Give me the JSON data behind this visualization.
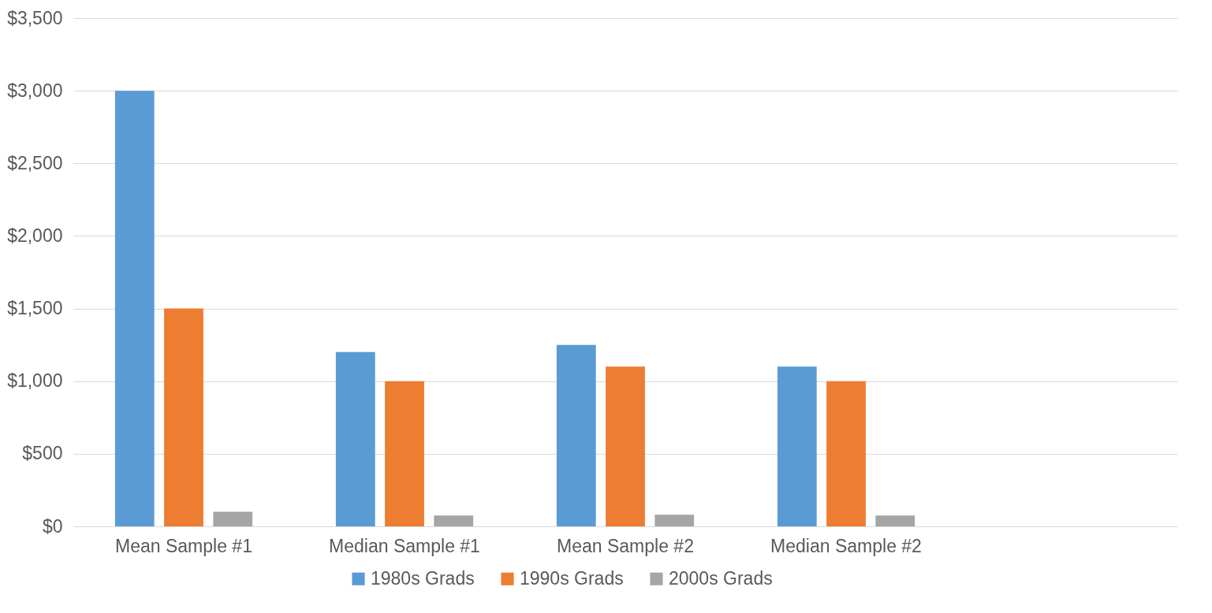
{
  "chart_data": {
    "type": "bar",
    "categories": [
      "Mean Sample #1",
      "Median Sample #1",
      "Mean Sample #2",
      "Median Sample #2",
      null
    ],
    "series": [
      {
        "name": "1980s Grads",
        "color": "#5b9bd5",
        "values": [
          3000,
          1200,
          1250,
          1100,
          null
        ]
      },
      {
        "name": "1990s Grads",
        "color": "#ed7d31",
        "values": [
          1500,
          1000,
          1100,
          1000,
          null
        ]
      },
      {
        "name": "2000s Grads",
        "color": "#a5a5a5",
        "values": [
          100,
          75,
          80,
          75,
          null
        ]
      }
    ],
    "ylim": [
      0,
      3500
    ],
    "yticks": [
      {
        "value": 0,
        "label": "$0"
      },
      {
        "value": 500,
        "label": "$500"
      },
      {
        "value": 1000,
        "label": "$1,000"
      },
      {
        "value": 1500,
        "label": "$1,500"
      },
      {
        "value": 2000,
        "label": "$2,000"
      },
      {
        "value": 2500,
        "label": "$2,500"
      },
      {
        "value": 3000,
        "label": "$3,000"
      },
      {
        "value": 3500,
        "label": "$3,500"
      }
    ],
    "grid": "y",
    "legend": "bottom"
  }
}
